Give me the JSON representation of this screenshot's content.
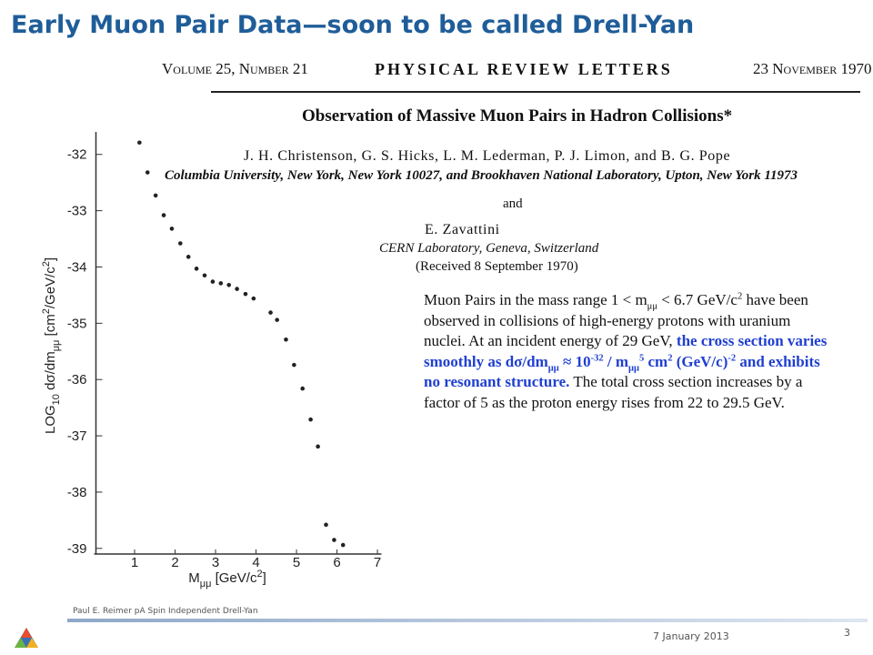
{
  "slide_title": "Early Muon Pair Data—soon to be called Drell-Yan",
  "paper": {
    "volume": "Volume 25, Number 21",
    "journal": "PHYSICAL REVIEW LETTERS",
    "date": "23 November 1970",
    "title": "Observation of Massive Muon Pairs in Hadron Collisions*",
    "authors": "J. H. Christenson, G. S. Hicks, L. M. Lederman, P. J. Limon, and B. G. Pope",
    "affiliation": "Columbia University, New York, New York 10027, and Brookhaven National Laboratory, Upton, New York 11973",
    "and": "and",
    "author2": "E. Zavattini",
    "affiliation2": "CERN Laboratory, Geneva, Switzerland",
    "received": "(Received 8 September 1970)"
  },
  "summary": [
    "Muon Pairs in the mass range 1 < m",
    "μμ",
    " < 6.7 GeV/c",
    "2",
    " have been observed in collisions of high-energy protons with uranium nuclei.  At an incident energy of 29 GeV, ",
    "the cross section varies smoothly as dσ/dm",
    "μμ",
    " ≈ 10",
    "-32",
    " / m",
    "μμ",
    "5",
    " cm",
    "2",
    " (GeV/c)",
    "-2",
    " and exhibits no resonant structure.",
    "  The total cross section increases by a factor of 5 as the proton energy rises from 22 to 29.5 GeV."
  ],
  "chart_data": {
    "type": "scatter",
    "xlabel": [
      "M",
      "μμ",
      "  [GeV/c",
      "2",
      "]"
    ],
    "ylabel": [
      "LOG",
      "10",
      " dσ/dm",
      "μμ",
      "  [cm",
      "2",
      "/GeV/c",
      "2",
      "]"
    ],
    "x": [
      1.12,
      1.32,
      1.52,
      1.72,
      1.92,
      2.13,
      2.33,
      2.53,
      2.73,
      2.93,
      3.13,
      3.33,
      3.53,
      3.74,
      3.94,
      4.36,
      4.52,
      4.74,
      4.94,
      5.15,
      5.35,
      5.53,
      5.73,
      5.93,
      6.15
    ],
    "values": [
      -31.79,
      -32.32,
      -32.73,
      -33.08,
      -33.32,
      -33.58,
      -33.82,
      -34.03,
      -34.15,
      -34.26,
      -34.29,
      -34.32,
      -34.39,
      -34.48,
      -34.56,
      -34.81,
      -34.94,
      -35.29,
      -35.74,
      -36.16,
      -36.71,
      -37.19,
      -38.58,
      -38.85,
      -38.94
    ],
    "color": "#222222",
    "xlim": [
      0,
      7.1
    ],
    "xticks": [
      1,
      2,
      3,
      4,
      5,
      6,
      7
    ],
    "ylim": [
      -39.1,
      -31.6
    ],
    "yticks": [
      -32,
      -33,
      -34,
      -35,
      -36,
      -37,
      -38,
      -39
    ]
  },
  "footer": {
    "presenter": "Paul E. Reimer pA Spin Independent Drell-Yan",
    "date": "7 January 2013",
    "page": "3"
  }
}
